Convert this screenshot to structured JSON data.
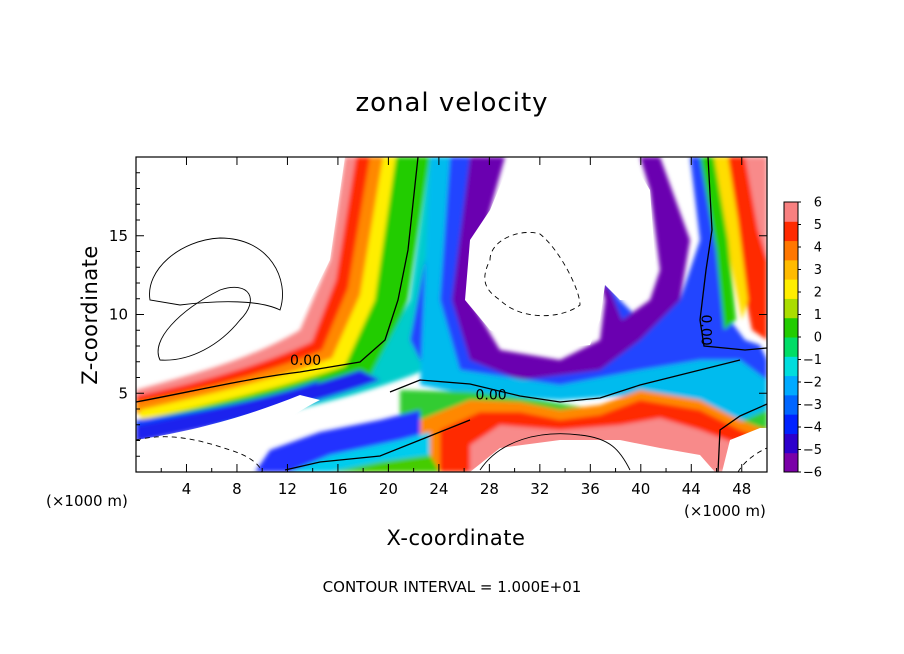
{
  "chart_data": {
    "type": "heatmap",
    "title": "zonal velocity",
    "xlabel": "X-coordinate",
    "ylabel": "Z-coordinate",
    "x_unit_left": "(×1000 m)",
    "x_unit_right": "(×1000 m)",
    "footnote": "CONTOUR INTERVAL = 1.000E+01",
    "xlim": [
      0,
      50
    ],
    "ylim": [
      0,
      20
    ],
    "x_ticks": [
      4,
      8,
      12,
      16,
      20,
      24,
      28,
      32,
      36,
      40,
      44,
      48
    ],
    "x_tick_labels": [
      "4",
      "8",
      "12",
      "16",
      "20",
      "24",
      "28",
      "32",
      "36",
      "40",
      "44",
      "48"
    ],
    "y_ticks": [
      5,
      10,
      15
    ],
    "y_tick_labels": [
      "5",
      "10",
      "15"
    ],
    "colorbar": {
      "min": -6,
      "max": 6,
      "tick_values": [
        6,
        5,
        4,
        3,
        2,
        1,
        0,
        -1,
        -2,
        -3,
        -4,
        -5,
        -6
      ],
      "tick_labels": [
        "6",
        "5",
        "4",
        "3",
        "2",
        "1",
        "0",
        "−1",
        "−2",
        "−3",
        "−4",
        "−5",
        "−6"
      ],
      "colors": [
        "#7a00a8",
        "#2d00cc",
        "#0022ff",
        "#0066ff",
        "#00aaff",
        "#00dddd",
        "#00dd66",
        "#22cc00",
        "#aadd00",
        "#ffee00",
        "#ffbb00",
        "#ff7700",
        "#ff2a00",
        "#f88080"
      ]
    },
    "contour_labels": [
      {
        "text": "0.00",
        "x": 12.2,
        "z": 6.8
      },
      {
        "text": "0.00",
        "x": 26.9,
        "z": 4.6
      },
      {
        "text": "0.00",
        "x": 44.8,
        "z": 10.0
      }
    ],
    "regions_note": "out-of-range areas left blank (white)"
  }
}
